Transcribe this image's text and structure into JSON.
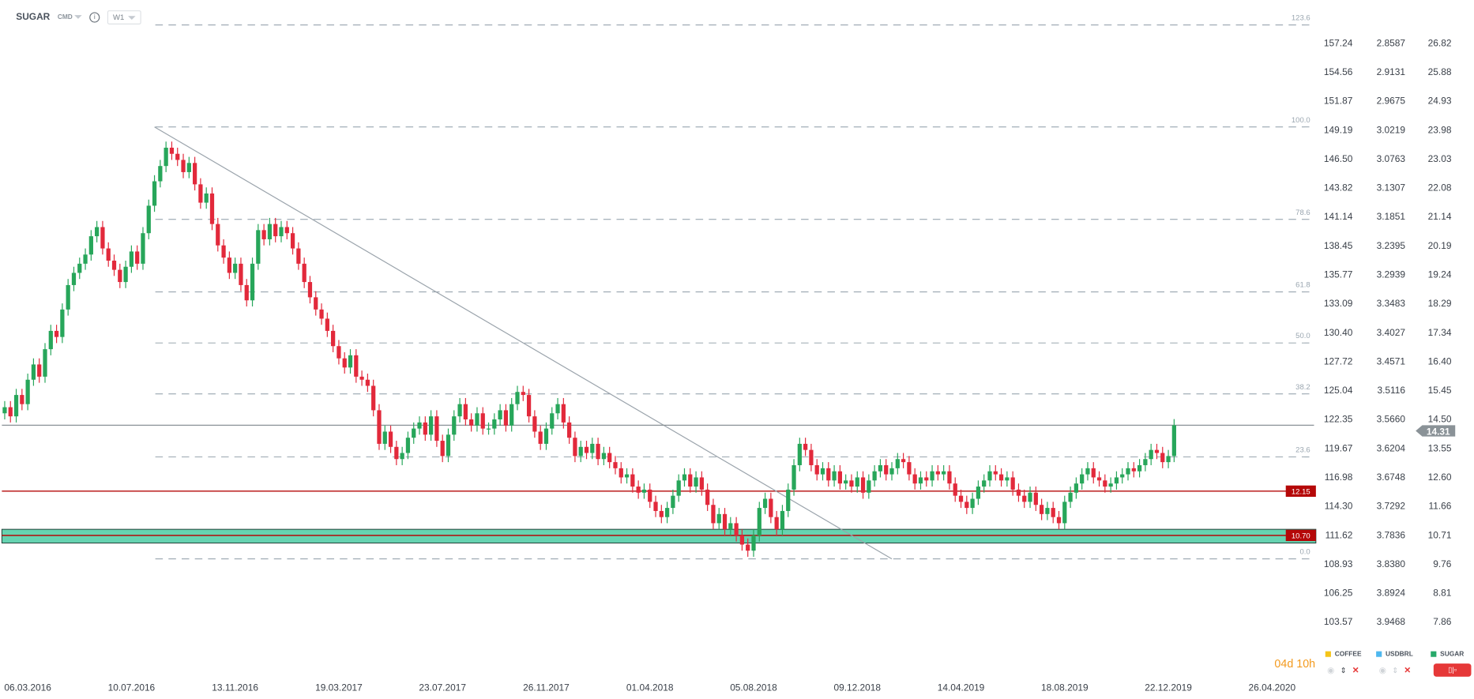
{
  "header": {
    "symbol": "SUGAR",
    "market": "CMD",
    "timeframe": "W1"
  },
  "countdown": {
    "days": "04d",
    "hours": "10h"
  },
  "legend": [
    {
      "name": "COFFEE",
      "color": "#f5c518"
    },
    {
      "name": "USDBRL",
      "color": "#4fb8ef"
    },
    {
      "name": "SUGAR",
      "color": "#27a96a"
    }
  ],
  "colors": {
    "up": "#27a65a",
    "down": "#e2293b",
    "zone": "#66d3b1",
    "support": "#b50808",
    "last": "#8a9297",
    "fib": "#8c9aa5"
  },
  "chart_data": {
    "type": "candlestick",
    "title": "SUGAR",
    "x_tick_labels": [
      "06.03.2016",
      "10.07.2016",
      "13.11.2016",
      "19.03.2017",
      "23.07.2017",
      "26.11.2017",
      "01.04.2018",
      "05.08.2018",
      "09.12.2018",
      "14.04.2019",
      "18.08.2019",
      "22.12.2019",
      "26.04.2020"
    ],
    "y_axis_sugar": [
      "26.82",
      "25.88",
      "24.93",
      "23.98",
      "23.03",
      "22.08",
      "21.14",
      "20.19",
      "19.24",
      "18.29",
      "17.34",
      "16.40",
      "15.45",
      "14.50",
      "13.55",
      "12.60",
      "11.66",
      "10.71",
      "9.76",
      "8.81",
      "7.86"
    ],
    "y_axis_coffee": [
      "157.24",
      "154.56",
      "151.87",
      "149.19",
      "146.50",
      "143.82",
      "141.14",
      "138.45",
      "135.77",
      "133.09",
      "130.40",
      "127.72",
      "125.04",
      "122.35",
      "119.67",
      "116.98",
      "114.30",
      "111.62",
      "108.93",
      "106.25",
      "103.57"
    ],
    "y_axis_usdbrl": [
      "2.8587",
      "2.9131",
      "2.9675",
      "3.0219",
      "3.0763",
      "3.1307",
      "3.1851",
      "3.2395",
      "3.2939",
      "3.3483",
      "3.4027",
      "3.4571",
      "3.5116",
      "3.5660",
      "3.6204",
      "3.6748",
      "3.7292",
      "3.7836",
      "3.8380",
      "3.8924",
      "3.9468"
    ],
    "ylim": [
      7.86,
      26.82
    ],
    "weekly_closes": [
      14.9,
      14.6,
      15.3,
      15.0,
      15.8,
      16.3,
      15.9,
      16.8,
      17.4,
      17.2,
      18.1,
      18.9,
      19.3,
      19.6,
      19.9,
      20.5,
      20.8,
      20.1,
      19.7,
      19.4,
      19.0,
      19.5,
      20.0,
      19.6,
      20.6,
      21.5,
      22.3,
      22.8,
      23.4,
      23.2,
      23.0,
      22.6,
      22.9,
      22.2,
      21.6,
      21.9,
      20.9,
      20.2,
      19.8,
      19.3,
      19.6,
      18.9,
      18.4,
      19.6,
      20.7,
      20.4,
      20.9,
      20.5,
      20.8,
      20.6,
      20.1,
      19.6,
      19.0,
      18.5,
      18.1,
      17.8,
      17.4,
      16.9,
      16.5,
      16.2,
      16.6,
      15.9,
      15.8,
      15.6,
      14.8,
      13.7,
      14.1,
      13.6,
      13.2,
      13.4,
      13.9,
      14.2,
      14.4,
      14.0,
      14.6,
      13.8,
      13.3,
      14.0,
      14.6,
      15.0,
      14.5,
      14.3,
      14.7,
      14.2,
      14.2,
      14.5,
      14.8,
      14.3,
      15.0,
      15.4,
      15.3,
      14.6,
      14.1,
      13.7,
      14.2,
      14.7,
      15.0,
      14.4,
      13.9,
      13.3,
      13.6,
      13.4,
      13.7,
      13.2,
      13.4,
      13.1,
      12.9,
      12.6,
      12.7,
      12.3,
      12.1,
      12.2,
      11.8,
      11.5,
      11.3,
      11.6,
      12.0,
      12.5,
      12.7,
      12.3,
      12.6,
      12.2,
      11.7,
      11.1,
      11.4,
      10.9,
      11.1,
      10.7,
      10.4,
      10.2,
      10.7,
      11.6,
      11.9,
      11.3,
      10.9,
      11.5,
      12.2,
      13.0,
      13.7,
      13.5,
      13.0,
      12.7,
      12.9,
      12.5,
      12.8,
      12.4,
      12.5,
      12.3,
      12.6,
      12.1,
      12.5,
      12.8,
      13.0,
      12.7,
      12.9,
      13.2,
      13.1,
      12.7,
      12.4,
      12.6,
      12.5,
      12.8,
      12.7,
      12.8,
      12.4,
      12.0,
      11.8,
      11.6,
      11.9,
      12.3,
      12.5,
      12.8,
      12.7,
      12.5,
      12.6,
      12.2,
      12.0,
      11.8,
      12.1,
      11.7,
      11.4,
      11.6,
      11.3,
      11.1,
      11.8,
      12.1,
      12.4,
      12.7,
      12.9,
      12.6,
      12.5,
      12.3,
      12.4,
      12.6,
      12.7,
      12.9,
      12.8,
      13.0,
      13.2,
      13.5,
      13.4,
      13.1,
      13.3,
      14.31
    ],
    "last_price": "14.31",
    "fibonacci": {
      "high": 24.08,
      "low": 9.93,
      "levels": [
        "123.6",
        "100.0",
        "78.6",
        "61.8",
        "50.0",
        "38.2",
        "23.6",
        "0.0"
      ]
    },
    "horizontal_lines": [
      {
        "label": "12.15",
        "price": 12.15
      },
      {
        "label": "10.70",
        "price": 10.7
      }
    ],
    "support_zone": [
      10.45,
      10.9
    ],
    "trendline": [
      {
        "week": 26,
        "price": 24.08
      },
      {
        "week": 154,
        "price": 9.93
      }
    ]
  }
}
